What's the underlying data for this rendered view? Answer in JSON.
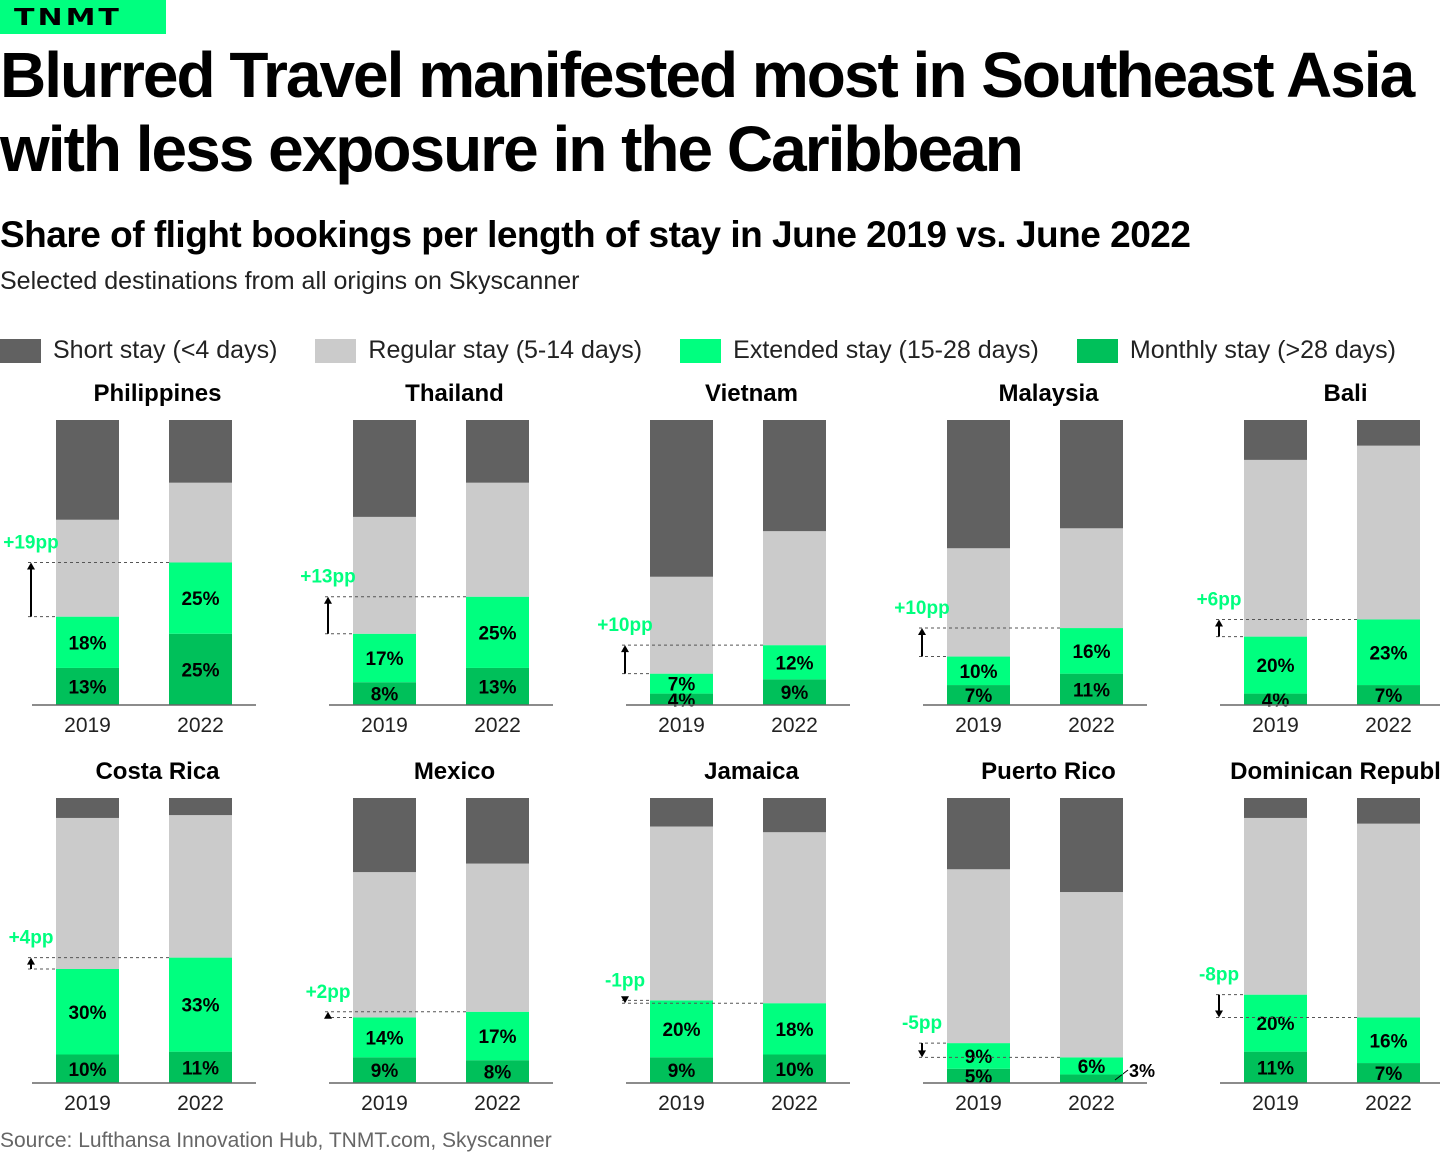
{
  "logo": "TNMT",
  "title": "Blurred Travel manifested most in Southeast Asia with less exposure in the Caribbean",
  "subtitle": "Share of flight bookings per length of stay in June 2019 vs. June 2022",
  "description": "Selected destinations from all origins on Skyscanner",
  "source": "Source: Lufthansa Innovation Hub, TNMT.com, Skyscanner",
  "chart_data": {
    "type": "bar",
    "stacked": true,
    "unit": "%",
    "years": [
      "2019",
      "2022"
    ],
    "legend_placement": "top",
    "series": [
      {
        "name": "Short stay (<4 days)",
        "color": "#616161"
      },
      {
        "name": "Regular stay (5-14 days)",
        "color": "#cbcbcb"
      },
      {
        "name": "Extended stay (15-28 days)",
        "color": "#00ff7f"
      },
      {
        "name": "Monthly stay (>28 days)",
        "color": "#00c05a"
      }
    ],
    "panels": [
      {
        "name": "Philippines",
        "delta": "+19pp",
        "bars": [
          {
            "short": 35,
            "regular": 34,
            "extended": 18,
            "monthly": 13
          },
          {
            "short": 22,
            "regular": 28,
            "extended": 25,
            "monthly": 25
          }
        ]
      },
      {
        "name": "Thailand",
        "delta": "+13pp",
        "bars": [
          {
            "short": 34,
            "regular": 41,
            "extended": 17,
            "monthly": 8
          },
          {
            "short": 22,
            "regular": 40,
            "extended": 25,
            "monthly": 13
          }
        ]
      },
      {
        "name": "Vietnam",
        "delta": "+10pp",
        "bars": [
          {
            "short": 55,
            "regular": 34,
            "extended": 7,
            "monthly": 4
          },
          {
            "short": 39,
            "regular": 40,
            "extended": 12,
            "monthly": 9
          }
        ]
      },
      {
        "name": "Malaysia",
        "delta": "+10pp",
        "bars": [
          {
            "short": 45,
            "regular": 38,
            "extended": 10,
            "monthly": 7
          },
          {
            "short": 38,
            "regular": 35,
            "extended": 16,
            "monthly": 11
          }
        ]
      },
      {
        "name": "Bali",
        "delta": "+6pp",
        "bars": [
          {
            "short": 14,
            "regular": 62,
            "extended": 20,
            "monthly": 4
          },
          {
            "short": 9,
            "regular": 61,
            "extended": 23,
            "monthly": 7
          }
        ]
      },
      {
        "name": "Costa Rica",
        "delta": "+4pp",
        "bars": [
          {
            "short": 7,
            "regular": 53,
            "extended": 30,
            "monthly": 10
          },
          {
            "short": 6,
            "regular": 50,
            "extended": 33,
            "monthly": 11
          }
        ]
      },
      {
        "name": "Mexico",
        "delta": "+2pp",
        "bars": [
          {
            "short": 26,
            "regular": 51,
            "extended": 14,
            "monthly": 9
          },
          {
            "short": 23,
            "regular": 52,
            "extended": 17,
            "monthly": 8
          }
        ]
      },
      {
        "name": "Jamaica",
        "delta": "-1pp",
        "bars": [
          {
            "short": 10,
            "regular": 61,
            "extended": 20,
            "monthly": 9
          },
          {
            "short": 12,
            "regular": 60,
            "extended": 18,
            "monthly": 10
          }
        ]
      },
      {
        "name": "Puerto Rico",
        "delta": "-5pp",
        "bars": [
          {
            "short": 25,
            "regular": 61,
            "extended": 9,
            "monthly": 5
          },
          {
            "short": 33,
            "regular": 58,
            "extended": 6,
            "monthly": 3
          }
        ]
      },
      {
        "name": "Dominican Republic",
        "delta": "-8pp",
        "bars": [
          {
            "short": 7,
            "regular": 62,
            "extended": 20,
            "monthly": 11
          },
          {
            "short": 9,
            "regular": 68,
            "extended": 16,
            "monthly": 7
          }
        ]
      }
    ]
  }
}
